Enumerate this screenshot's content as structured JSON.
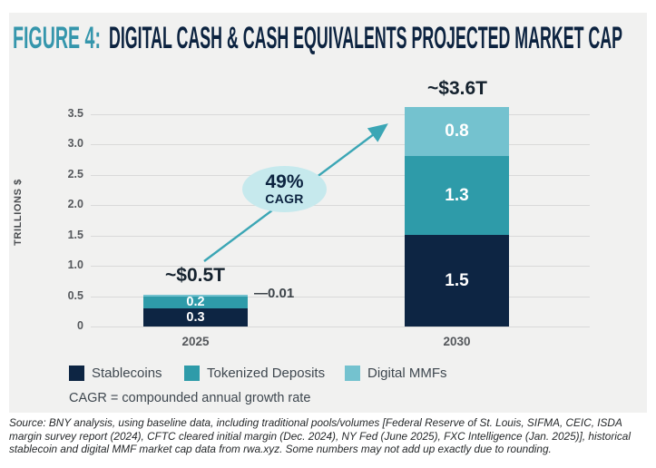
{
  "header": {
    "figure_label": "FIGURE 4:",
    "title": "DIGITAL CASH & CASH EQUIVALENTS PROJECTED MARKET CAP"
  },
  "chart_data": {
    "type": "bar",
    "stacked": true,
    "categories": [
      "2025",
      "2030"
    ],
    "series": [
      {
        "name": "Stablecoins",
        "color": "#0d2543",
        "values": [
          0.3,
          1.5
        ]
      },
      {
        "name": "Tokenized Deposits",
        "color": "#2e9ba9",
        "values": [
          0.2,
          1.3
        ]
      },
      {
        "name": "Digital MMFs",
        "color": "#74c2cf",
        "values": [
          0.01,
          0.8
        ]
      }
    ],
    "segment_labels": [
      [
        "0.3",
        "0.2",
        ""
      ],
      [
        "1.5",
        "1.3",
        "0.8"
      ]
    ],
    "bar_totals": [
      "~$0.5T",
      "~$3.6T"
    ],
    "ylabel": "TRILLIONS $",
    "yticks": [
      "0",
      "0.5",
      "1.0",
      "1.5",
      "2.0",
      "2.5",
      "3.0",
      "3.5"
    ],
    "ylim": [
      0,
      3.5
    ],
    "grid": true,
    "legend_position": "bottom"
  },
  "annotations": {
    "cagr_value": "49%",
    "cagr_label": "CAGR",
    "mmf_callout": "—0.01"
  },
  "legend": {
    "items": [
      {
        "label": "Stablecoins",
        "color": "#0d2543"
      },
      {
        "label": "Tokenized Deposits",
        "color": "#2e9ba9"
      },
      {
        "label": "Digital MMFs",
        "color": "#74c2cf"
      }
    ],
    "note": "CAGR = compounded annual growth rate"
  },
  "footer": {
    "source": "Source: BNY analysis, using baseline data, including traditional pools/volumes [Federal Reserve of St. Louis, SIFMA, CEIC, ISDA margin survey report (2024), CFTC cleared initial margin (Dec. 2024), NY Fed (June 2025), FXC Intelligence (Jan. 2025)], historical stablecoin and digital MMF market cap data from rwa.xyz. Some numbers may not add up exactly due to rounding."
  },
  "colors": {
    "accent_teal": "#3596ac",
    "title_navy": "#0c2340",
    "arrow": "#3ba6b5",
    "ellipse_fill": "#c6e9ed",
    "panel_bg": "#f1f1f0",
    "gridline": "#d9d9d9"
  }
}
